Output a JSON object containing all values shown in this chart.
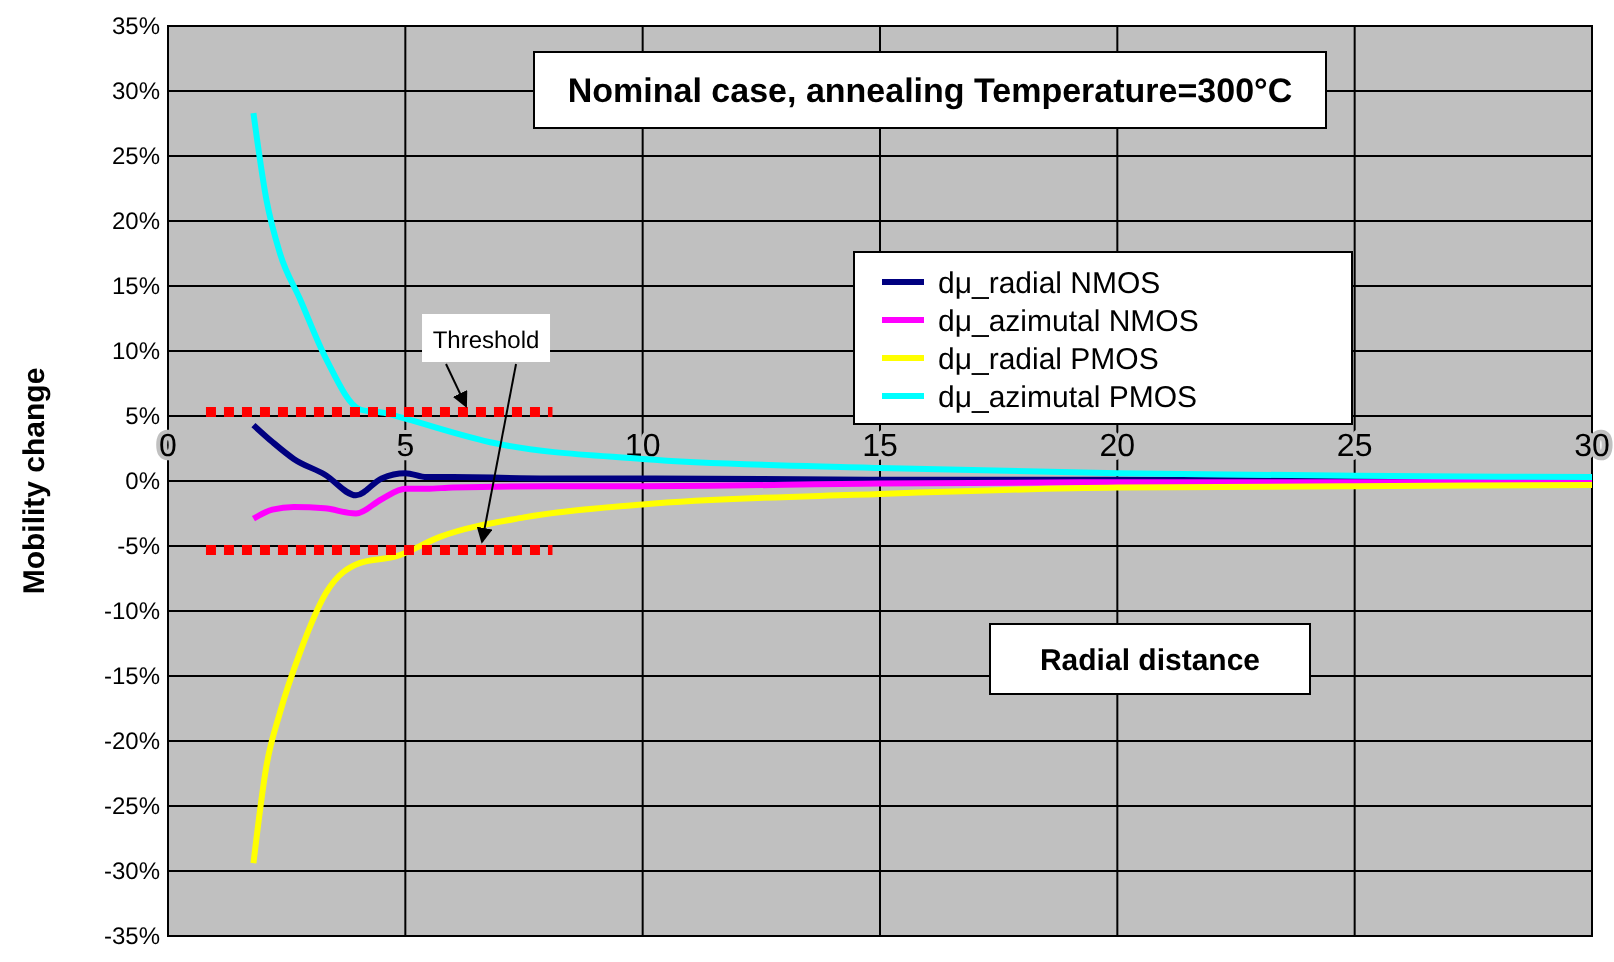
{
  "chart_data": {
    "type": "line",
    "title": "Nominal case, annealing Temperature=300°C",
    "xlabel": "Radial distance",
    "ylabel": "Mobility change",
    "xlim": [
      0,
      30
    ],
    "xticks": [
      0,
      5,
      10,
      15,
      20,
      25,
      30
    ],
    "ylim": [
      -35,
      35
    ],
    "yticks": [
      {
        "value": -35,
        "label": "-35%"
      },
      {
        "value": -30,
        "label": "-30%"
      },
      {
        "value": -25,
        "label": "-25%"
      },
      {
        "value": -20,
        "label": "-20%"
      },
      {
        "value": -15,
        "label": "-15%"
      },
      {
        "value": -10,
        "label": "-10%"
      },
      {
        "value": -5,
        "label": "-5%"
      },
      {
        "value": 0,
        "label": "0%"
      },
      {
        "value": 5,
        "label": "5%"
      },
      {
        "value": 10,
        "label": "10%"
      },
      {
        "value": 15,
        "label": "15%"
      },
      {
        "value": 20,
        "label": "20%"
      },
      {
        "value": 25,
        "label": "25%"
      },
      {
        "value": 30,
        "label": "30%"
      },
      {
        "value": 35,
        "label": "35%"
      }
    ],
    "grid": true,
    "legend": "top right",
    "marker": "none",
    "line_style": "solid",
    "series": [
      {
        "name": "dμ_radial NMOS",
        "color": "#000080",
        "x": [
          1.8,
          2.2,
          2.65,
          3.3,
          3.96,
          4.5,
          5,
          5.45,
          6,
          8,
          10,
          15,
          20,
          25,
          30
        ],
        "values": [
          4.3,
          3,
          1.7,
          0.5,
          -1.1,
          0.2,
          0.6,
          0.3,
          0.3,
          0.2,
          0.2,
          0.1,
          0.1,
          0,
          0
        ]
      },
      {
        "name": "dμ_azimutal NMOS",
        "color": "#ff00ff",
        "x": [
          1.8,
          2.2,
          2.65,
          3.3,
          3.96,
          4.5,
          5,
          5.45,
          6,
          8,
          10,
          15,
          20,
          25,
          30
        ],
        "values": [
          -2.9,
          -2.2,
          -2,
          -2.1,
          -2.5,
          -1.4,
          -0.6,
          -0.6,
          -0.5,
          -0.4,
          -0.4,
          -0.2,
          -0.1,
          -0.1,
          0
        ]
      },
      {
        "name": "dμ_radial PMOS",
        "color": "#ffff00",
        "x": [
          1.8,
          2.07,
          2.36,
          2.78,
          3.33,
          4.05,
          4.8,
          5.73,
          7.5,
          10,
          15,
          20,
          25,
          30
        ],
        "values": [
          -29.4,
          -22,
          -17.8,
          -13.2,
          -8.6,
          -6.3,
          -5.8,
          -4.3,
          -2.8,
          -1.8,
          -1,
          -0.5,
          -0.4,
          -0.3
        ]
      },
      {
        "name": "dμ_azimutal PMOS",
        "color": "#00ffff",
        "x": [
          1.8,
          2.07,
          2.36,
          2.78,
          3.33,
          4.05,
          4.6,
          5,
          6.9,
          10,
          15,
          20,
          25,
          30
        ],
        "values": [
          28.3,
          21.7,
          17.5,
          14,
          9.4,
          5.5,
          5.2,
          4.8,
          2.9,
          1.7,
          1,
          0.6,
          0.4,
          0.3
        ]
      },
      {
        "color": "#ff0000",
        "line_style": "dotted",
        "x": [
          0.8,
          8.1
        ],
        "values": [
          5.3,
          5.3
        ]
      },
      {
        "color": "#ff0000",
        "line_style": "dotted",
        "x": [
          0.8,
          8.1
        ],
        "values": [
          -5.3,
          -5.3
        ]
      }
    ],
    "annotations": [
      {
        "text": "Threshold",
        "x": 6.7,
        "y": 5.3
      }
    ]
  }
}
